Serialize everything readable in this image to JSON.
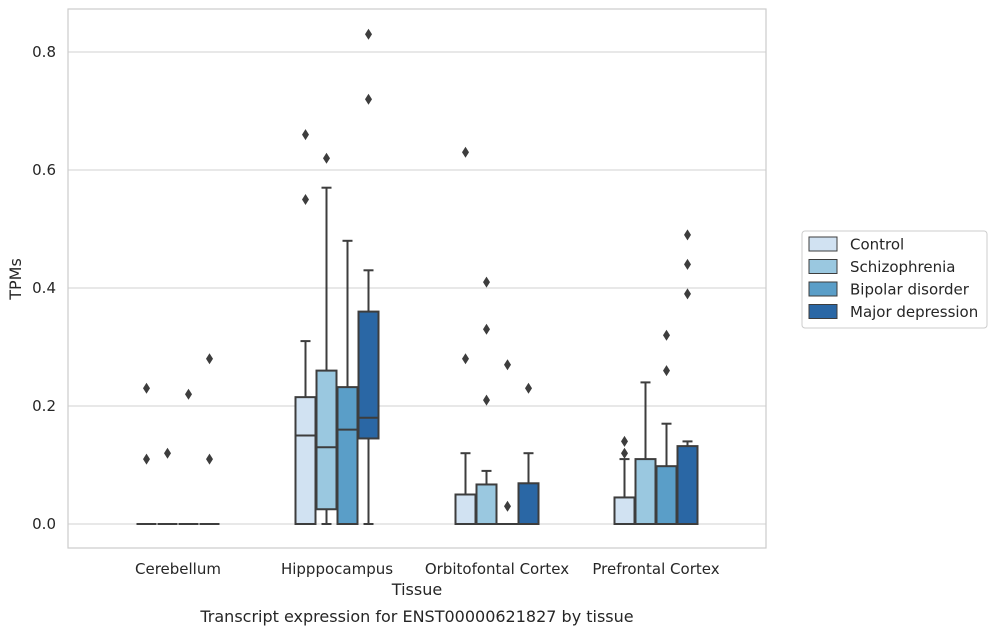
{
  "chart_data": {
    "type": "box",
    "xlabel": "Tissue",
    "ylabel": "TPMs",
    "caption": "Transcript expression for ENST00000621827 by tissue",
    "ylim": [
      -0.04,
      0.875
    ],
    "yticks": [
      0.0,
      0.2,
      0.4,
      0.6,
      0.8
    ],
    "ytick_labels": [
      "0.0",
      "0.2",
      "0.4",
      "0.6",
      "0.8"
    ],
    "grid": "horizontal",
    "legend_position": "right",
    "categories": [
      "Cerebellum",
      "Hipppocampus",
      "Orbitofontal Cortex",
      "Prefrontal Cortex"
    ],
    "colors": [
      "#d1e2f2",
      "#9ac8e0",
      "#5a9ec8",
      "#2a67a5"
    ],
    "series": [
      {
        "name": "Control",
        "boxes": [
          {
            "q1": 0,
            "median": 0,
            "q3": 0,
            "whisker_low": 0,
            "whisker_high": 0,
            "outliers": [
              0.11,
              0.23
            ]
          },
          {
            "q1": 0,
            "median": 0.15,
            "q3": 0.215,
            "whisker_low": 0,
            "whisker_high": 0.31,
            "outliers": [
              0.55,
              0.66
            ]
          },
          {
            "q1": 0,
            "median": 0,
            "q3": 0.05,
            "whisker_low": 0,
            "whisker_high": 0.12,
            "outliers": [
              0.28,
              0.63
            ]
          },
          {
            "q1": 0,
            "median": 0,
            "q3": 0.045,
            "whisker_low": 0,
            "whisker_high": 0.11,
            "outliers": [
              0.12,
              0.14
            ]
          }
        ]
      },
      {
        "name": "Schizophrenia",
        "boxes": [
          {
            "q1": 0,
            "median": 0,
            "q3": 0,
            "whisker_low": 0,
            "whisker_high": 0,
            "outliers": [
              0.12
            ]
          },
          {
            "q1": 0.025,
            "median": 0.13,
            "q3": 0.26,
            "whisker_low": 0,
            "whisker_high": 0.57,
            "outliers": [
              0.62
            ]
          },
          {
            "q1": 0,
            "median": 0,
            "q3": 0.067,
            "whisker_low": 0,
            "whisker_high": 0.09,
            "outliers": [
              0.21,
              0.33,
              0.41
            ]
          },
          {
            "q1": 0,
            "median": 0,
            "q3": 0.11,
            "whisker_low": 0,
            "whisker_high": 0.24,
            "outliers": []
          }
        ]
      },
      {
        "name": "Bipolar disorder",
        "boxes": [
          {
            "q1": 0,
            "median": 0,
            "q3": 0,
            "whisker_low": 0,
            "whisker_high": 0,
            "outliers": [
              0.22
            ]
          },
          {
            "q1": 0,
            "median": 0.16,
            "q3": 0.232,
            "whisker_low": 0,
            "whisker_high": 0.48,
            "outliers": []
          },
          {
            "q1": 0,
            "median": 0,
            "q3": 0,
            "whisker_low": 0,
            "whisker_high": 0,
            "outliers": [
              0.03,
              0.27
            ]
          },
          {
            "q1": 0,
            "median": 0,
            "q3": 0.098,
            "whisker_low": 0,
            "whisker_high": 0.17,
            "outliers": [
              0.26,
              0.32
            ]
          }
        ]
      },
      {
        "name": "Major depression",
        "boxes": [
          {
            "q1": 0,
            "median": 0,
            "q3": 0,
            "whisker_low": 0,
            "whisker_high": 0,
            "outliers": [
              0.11,
              0.28
            ]
          },
          {
            "q1": 0.145,
            "median": 0.18,
            "q3": 0.36,
            "whisker_low": 0,
            "whisker_high": 0.43,
            "outliers": [
              0.72,
              0.83
            ]
          },
          {
            "q1": 0,
            "median": 0,
            "q3": 0.069,
            "whisker_low": 0,
            "whisker_high": 0.12,
            "outliers": [
              0.23
            ]
          },
          {
            "q1": 0,
            "median": 0,
            "q3": 0.132,
            "whisker_low": 0,
            "whisker_high": 0.14,
            "outliers": [
              0.39,
              0.44,
              0.49
            ]
          }
        ]
      }
    ]
  }
}
